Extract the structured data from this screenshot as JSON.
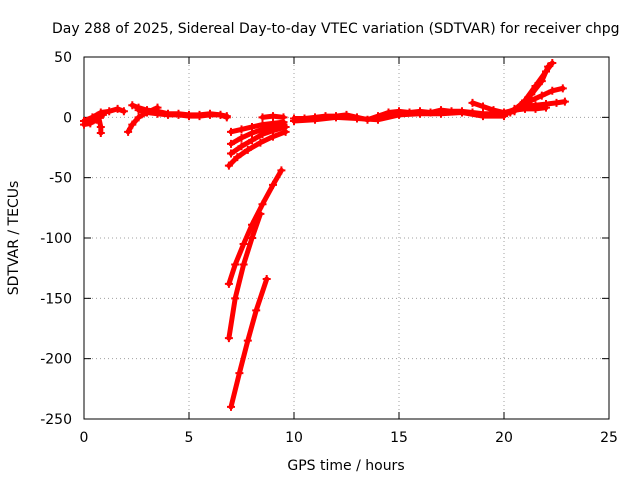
{
  "chart_data": {
    "type": "scatter",
    "title": "Day 288 of 2025, Sidereal Day-to-day VTEC variation (SDTVAR) for receiver chpg",
    "xlabel": "GPS time / hours",
    "ylabel": "SDTVAR / TECUs",
    "xlim": [
      0,
      25
    ],
    "ylim": [
      -250,
      50
    ],
    "xticks": [
      0,
      5,
      10,
      15,
      20,
      25
    ],
    "yticks": [
      -250,
      -200,
      -150,
      -100,
      -50,
      0,
      50
    ],
    "grid": true,
    "marker": "+",
    "color": "#ff0000",
    "series": [
      {
        "x": [
          0.0,
          0.4,
          0.8,
          1.2,
          1.6,
          1.9
        ],
        "y": [
          -3,
          0,
          4,
          5,
          7,
          5
        ]
      },
      {
        "x": [
          0.0,
          0.3,
          0.6,
          0.9
        ],
        "y": [
          -6,
          -5,
          -2,
          2
        ]
      },
      {
        "x": [
          0.7,
          0.8,
          0.8
        ],
        "y": [
          0,
          -8,
          -13
        ]
      },
      {
        "x": [
          2.1,
          2.3,
          2.6,
          3.0,
          3.5
        ],
        "y": [
          -12,
          -6,
          0,
          4,
          8
        ]
      },
      {
        "x": [
          2.3,
          2.6,
          3.0,
          3.5,
          4.0,
          4.5,
          5.0,
          5.5,
          6.0,
          6.5,
          6.8
        ],
        "y": [
          10,
          8,
          6,
          5,
          3,
          3,
          2,
          2,
          3,
          2,
          1
        ]
      },
      {
        "x": [
          2.6,
          3.0,
          3.5,
          4.0,
          4.5,
          5.0,
          5.5,
          6.0,
          6.5,
          6.8
        ],
        "y": [
          6,
          4,
          3,
          2,
          2,
          1,
          1,
          2,
          2,
          0
        ]
      },
      {
        "x": [
          6.9,
          7.3,
          7.8,
          8.4,
          9.0,
          9.6
        ],
        "y": [
          -40,
          -33,
          -27,
          -21,
          -16,
          -12
        ]
      },
      {
        "x": [
          7.0,
          7.5,
          8.0,
          8.5,
          9.0,
          9.6
        ],
        "y": [
          -30,
          -24,
          -19,
          -14,
          -11,
          -8
        ]
      },
      {
        "x": [
          7.0,
          7.5,
          8.0,
          8.5,
          9.0,
          9.5
        ],
        "y": [
          -22,
          -17,
          -13,
          -10,
          -7,
          -6
        ]
      },
      {
        "x": [
          7.0,
          7.5,
          8.0,
          8.5,
          9.0,
          9.5
        ],
        "y": [
          -12,
          -10,
          -8,
          -6,
          -5,
          -4
        ]
      },
      {
        "x": [
          8.5,
          9.0,
          9.5
        ],
        "y": [
          0,
          1,
          0
        ]
      },
      {
        "x": [
          6.9,
          7.2,
          7.6,
          8.0,
          8.5,
          9.0,
          9.4
        ],
        "y": [
          -138,
          -122,
          -105,
          -89,
          -72,
          -56,
          -44
        ]
      },
      {
        "x": [
          6.9,
          7.2,
          7.6,
          8.0,
          8.4
        ],
        "y": [
          -183,
          -150,
          -122,
          -100,
          -80
        ]
      },
      {
        "x": [
          7.0,
          7.4,
          7.8,
          8.2,
          8.7
        ],
        "y": [
          -240,
          -212,
          -185,
          -160,
          -134
        ]
      },
      {
        "x": [
          10.0,
          10.5,
          11.0,
          11.5,
          12.0,
          12.5,
          13.0,
          13.5,
          14.0,
          14.5,
          15.0,
          15.5,
          16.0,
          16.5,
          17.0,
          17.5,
          18.0,
          18.5,
          19.0,
          19.5,
          20.0,
          20.5
        ],
        "y": [
          -1,
          -1,
          0,
          1,
          1,
          2,
          0,
          -2,
          1,
          4,
          5,
          4,
          5,
          4,
          6,
          5,
          5,
          4,
          3,
          3,
          3,
          5
        ]
      },
      {
        "x": [
          10.0,
          11.0,
          12.0,
          13.0,
          14.0,
          15.0,
          16.0,
          17.0,
          18.0,
          19.0,
          20.0
        ],
        "y": [
          -3,
          -2,
          0,
          -1,
          -2,
          2,
          3,
          3,
          4,
          1,
          1
        ]
      },
      {
        "x": [
          18.5,
          19.0,
          19.5,
          20.0,
          20.5
        ],
        "y": [
          12,
          9,
          6,
          4,
          6
        ]
      },
      {
        "x": [
          20.0,
          20.5,
          21.0,
          21.5,
          22.0,
          22.3
        ],
        "y": [
          2,
          6,
          14,
          26,
          38,
          45
        ]
      },
      {
        "x": [
          20.3,
          20.8,
          21.3,
          21.8,
          22.1
        ],
        "y": [
          4,
          10,
          19,
          30,
          42
        ]
      },
      {
        "x": [
          20.5,
          21.0,
          21.5,
          22.0,
          22.5,
          22.9
        ],
        "y": [
          7,
          9,
          10,
          11,
          12,
          13
        ]
      },
      {
        "x": [
          20.8,
          21.3,
          21.8,
          22.3,
          22.8
        ],
        "y": [
          10,
          14,
          18,
          22,
          24
        ]
      },
      {
        "x": [
          20.5,
          21.0,
          21.5,
          22.0
        ],
        "y": [
          6,
          7,
          7,
          8
        ]
      }
    ]
  }
}
